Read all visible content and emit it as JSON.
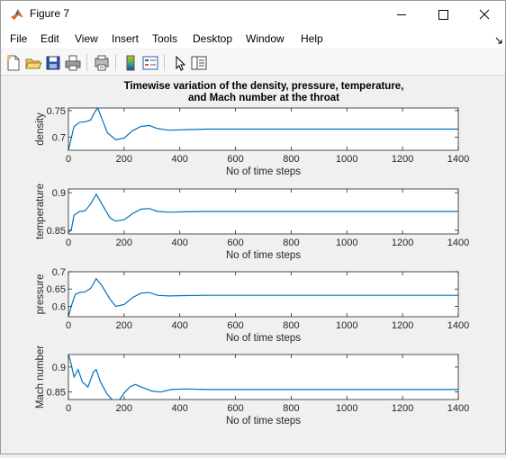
{
  "window": {
    "title": "Figure 7"
  },
  "menu": [
    "File",
    "Edit",
    "View",
    "Insert",
    "Tools",
    "Desktop",
    "Window",
    "Help"
  ],
  "toolbar": [
    "new-figure-icon",
    "open-file-icon",
    "save-icon",
    "print-icon",
    "print-preview-icon",
    "colorbar-icon",
    "legend-icon",
    "edit-plot-arrow-icon",
    "property-inspector-icon"
  ],
  "colors": {
    "line": "#0072bd",
    "axes_bg": "#ffffff",
    "figure_bg": "#f0f0f0"
  },
  "chart_data": [
    {
      "type": "line",
      "title": "Timewise variation of the density, pressure, temperature,",
      "title_line2": "and Mach number at the throat",
      "xlabel": "No of time steps",
      "ylabel": "density",
      "xlim": [
        0,
        1400
      ],
      "ylim": [
        0.675,
        0.755
      ],
      "xticks": [
        "0",
        "200",
        "400",
        "600",
        "800",
        "1000",
        "1200",
        "1400"
      ],
      "yticks": [
        0.7,
        0.75
      ],
      "ytick_labels": [
        "0.7",
        "0.75"
      ],
      "x": [
        0,
        20,
        40,
        60,
        80,
        95,
        105,
        120,
        140,
        170,
        200,
        230,
        260,
        290,
        320,
        360,
        420,
        500,
        600,
        800,
        1000,
        1200,
        1400
      ],
      "values": [
        0.675,
        0.72,
        0.728,
        0.729,
        0.732,
        0.748,
        0.755,
        0.735,
        0.708,
        0.695,
        0.698,
        0.712,
        0.72,
        0.722,
        0.716,
        0.713,
        0.714,
        0.715,
        0.715,
        0.715,
        0.715,
        0.715,
        0.715
      ]
    },
    {
      "type": "line",
      "xlabel": "No of time steps",
      "ylabel": "temperature",
      "xlim": [
        0,
        1400
      ],
      "ylim": [
        0.845,
        0.905
      ],
      "xticks": [
        "0",
        "200",
        "400",
        "600",
        "800",
        "1000",
        "1200",
        "1400"
      ],
      "yticks": [
        0.85,
        0.9
      ],
      "ytick_labels": [
        "0.85",
        "0.9"
      ],
      "x": [
        0,
        10,
        20,
        40,
        60,
        80,
        100,
        120,
        150,
        170,
        200,
        230,
        260,
        290,
        320,
        360,
        420,
        500,
        600,
        800,
        1000,
        1200,
        1400
      ],
      "values": [
        0.847,
        0.85,
        0.87,
        0.875,
        0.876,
        0.885,
        0.898,
        0.885,
        0.866,
        0.862,
        0.864,
        0.872,
        0.878,
        0.879,
        0.875,
        0.874,
        0.8745,
        0.875,
        0.875,
        0.875,
        0.875,
        0.875,
        0.875
      ]
    },
    {
      "type": "line",
      "xlabel": "No of time steps",
      "ylabel": "pressure",
      "xlim": [
        0,
        1400
      ],
      "ylim": [
        0.57,
        0.7
      ],
      "xticks": [
        "0",
        "200",
        "400",
        "600",
        "800",
        "1000",
        "1200",
        "1400"
      ],
      "yticks": [
        0.6,
        0.65,
        0.7
      ],
      "ytick_labels": [
        "0.6",
        "0.65",
        "0.7"
      ],
      "x": [
        0,
        10,
        25,
        40,
        60,
        80,
        100,
        120,
        150,
        170,
        200,
        230,
        260,
        290,
        320,
        360,
        420,
        500,
        600,
        800,
        1000,
        1200,
        1400
      ],
      "values": [
        0.57,
        0.6,
        0.635,
        0.64,
        0.642,
        0.652,
        0.68,
        0.66,
        0.62,
        0.6,
        0.605,
        0.625,
        0.638,
        0.64,
        0.632,
        0.63,
        0.631,
        0.632,
        0.632,
        0.632,
        0.632,
        0.632,
        0.632
      ]
    },
    {
      "type": "line",
      "xlabel": "No of time steps",
      "ylabel": "Mach number",
      "xlim": [
        0,
        1400
      ],
      "ylim": [
        0.835,
        0.925
      ],
      "xticks": [
        "0",
        "200",
        "400",
        "600",
        "800",
        "1000",
        "1200",
        "1400"
      ],
      "yticks": [
        0.85,
        0.9
      ],
      "ytick_labels": [
        "0.85",
        "0.9"
      ],
      "x": [
        0,
        8,
        20,
        35,
        50,
        70,
        90,
        100,
        115,
        140,
        160,
        180,
        200,
        220,
        240,
        270,
        300,
        330,
        370,
        420,
        500,
        600,
        800,
        1000,
        1200,
        1400
      ],
      "values": [
        0.925,
        0.91,
        0.88,
        0.895,
        0.87,
        0.86,
        0.89,
        0.895,
        0.87,
        0.845,
        0.833,
        0.832,
        0.848,
        0.86,
        0.865,
        0.858,
        0.852,
        0.85,
        0.855,
        0.856,
        0.855,
        0.855,
        0.855,
        0.855,
        0.855,
        0.855
      ]
    }
  ]
}
